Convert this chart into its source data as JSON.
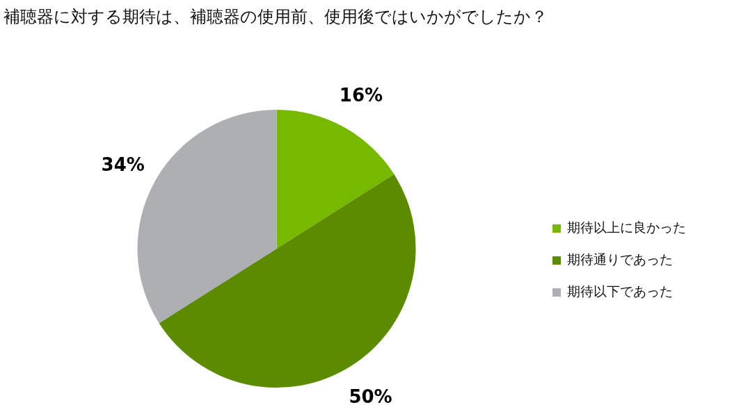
{
  "chart_data": {
    "type": "pie",
    "title": "補聴器に対する期待は、補聴器の使用前、使用後ではいかがでしたか？",
    "categories": [
      "期待以上に良かった",
      "期待通りであった",
      "期待以下であった"
    ],
    "values": [
      16,
      50,
      34
    ],
    "colors": [
      "#76b900",
      "#5c8a00",
      "#adb0b2"
    ],
    "value_labels": [
      "16%",
      "50%",
      "34%"
    ],
    "legend": "right"
  }
}
